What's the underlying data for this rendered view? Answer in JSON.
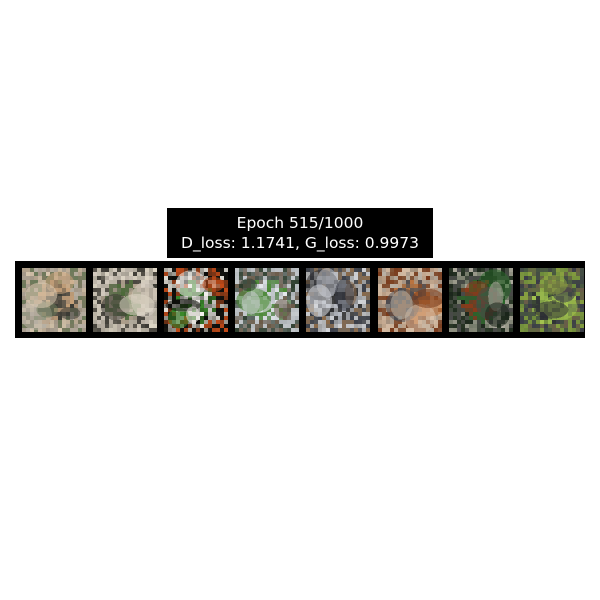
{
  "figure": {
    "title_line1": "Epoch 515/1000",
    "title_line2": "D_loss: 1.1741, G_loss: 0.9973"
  },
  "samples": [
    {
      "label": "generated-sample-1",
      "base": "#8a7a66",
      "blobs": [
        "#c9a27a",
        "#3a3a34",
        "#b8b0a4",
        "#6a7a5a",
        "#d8c8b0"
      ]
    },
    {
      "label": "generated-sample-2",
      "base": "#7f7a6e",
      "blobs": [
        "#4c6a38",
        "#b7a792",
        "#d4cbbf",
        "#3c3a34",
        "#e0d8c8"
      ]
    },
    {
      "label": "generated-sample-3",
      "base": "#1a1a14",
      "blobs": [
        "#f4f2ee",
        "#3a8a2a",
        "#c24a18",
        "#0c0c0a",
        "#e8e4dc"
      ]
    },
    {
      "label": "generated-sample-4",
      "base": "#9aa0a4",
      "blobs": [
        "#e4e8ec",
        "#4a8a34",
        "#6a5a48",
        "#c8ccd0",
        "#2a3a2a"
      ]
    },
    {
      "label": "generated-sample-5",
      "base": "#6a6a68",
      "blobs": [
        "#2a2a2c",
        "#b8bcc4",
        "#8a6a4a",
        "#d4d6da",
        "#3a3e48"
      ]
    },
    {
      "label": "generated-sample-6",
      "base": "#8a6a50",
      "blobs": [
        "#c8763a",
        "#4a4a50",
        "#d8c0a8",
        "#7a3a1a",
        "#bcb4a8"
      ]
    },
    {
      "label": "generated-sample-7",
      "base": "#3a4a34",
      "blobs": [
        "#2a6a2a",
        "#8a3a1a",
        "#4a4a4a",
        "#b0aca0",
        "#1a241a"
      ]
    },
    {
      "label": "generated-sample-8",
      "base": "#5a7a3a",
      "blobs": [
        "#a4c450",
        "#2a2a34",
        "#6a5a4a",
        "#3a3a48",
        "#88a040"
      ]
    }
  ]
}
